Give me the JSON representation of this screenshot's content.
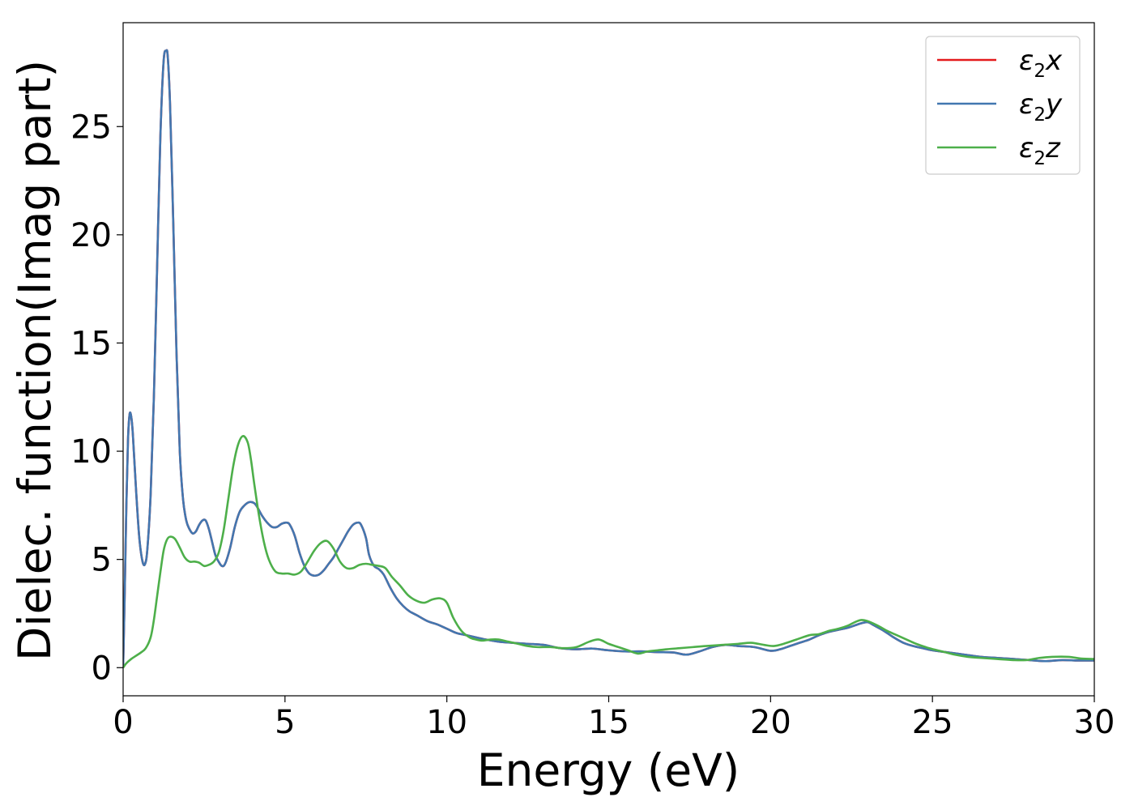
{
  "chart_data": {
    "type": "line",
    "title": "",
    "xlabel": "Energy (eV)",
    "ylabel": "Dielec. function(Imag part)",
    "xlim": [
      0,
      30
    ],
    "ylim": [
      -1.3,
      29.8
    ],
    "xticks": [
      0,
      5,
      10,
      15,
      20,
      25,
      30
    ],
    "yticks": [
      0,
      5,
      10,
      15,
      20,
      25
    ],
    "grid": false,
    "legend_position": "top-right",
    "series": [
      {
        "name": "ε₂x",
        "legend_main": "ε",
        "legend_sub": "2",
        "legend_suffix": "x",
        "color": "#e41a1c",
        "x": [
          0,
          0.05,
          0.1,
          0.15,
          0.2,
          0.25,
          0.3,
          0.4,
          0.5,
          0.6,
          0.68,
          0.75,
          0.85,
          0.95,
          1.05,
          1.15,
          1.25,
          1.33,
          1.38,
          1.45,
          1.55,
          1.65,
          1.75,
          1.85,
          1.95,
          2.05,
          2.15,
          2.25,
          2.35,
          2.45,
          2.55,
          2.65,
          2.75,
          2.85,
          2.95,
          3.05,
          3.15,
          3.3,
          3.45,
          3.6,
          3.75,
          3.9,
          4.05,
          4.15,
          4.3,
          4.45,
          4.6,
          4.75,
          4.9,
          5.05,
          5.15,
          5.3,
          5.45,
          5.6,
          5.75,
          5.9,
          6.05,
          6.2,
          6.35,
          6.5,
          6.65,
          6.8,
          6.95,
          7.1,
          7.25,
          7.35,
          7.5,
          7.6,
          7.75,
          7.9,
          8.05,
          8.25,
          8.45,
          8.65,
          8.85,
          9.1,
          9.4,
          9.7,
          10.0,
          10.3,
          10.6,
          10.9,
          11.2,
          11.6,
          12.0,
          12.5,
          13.0,
          13.5,
          14.0,
          14.5,
          15.0,
          15.5,
          16.0,
          16.5,
          17.0,
          17.4,
          17.8,
          18.2,
          18.6,
          19.0,
          19.5,
          20.0,
          20.3,
          20.6,
          20.9,
          21.2,
          21.5,
          21.8,
          22.1,
          22.4,
          22.6,
          22.8,
          23.0,
          23.2,
          23.5,
          23.8,
          24.1,
          24.4,
          24.7,
          25.0,
          25.5,
          26.0,
          26.5,
          27.0,
          27.5,
          28.0,
          28.5,
          29.0,
          29.5,
          30.0
        ],
        "y": [
          0.0,
          3.5,
          7.5,
          10.5,
          11.7,
          11.6,
          10.8,
          8.2,
          6.0,
          4.9,
          4.8,
          5.5,
          8.0,
          12.5,
          18.5,
          24.5,
          28.0,
          28.5,
          28.2,
          26.0,
          20.5,
          14.5,
          10.0,
          7.8,
          6.8,
          6.4,
          6.2,
          6.3,
          6.6,
          6.8,
          6.8,
          6.4,
          5.8,
          5.2,
          4.9,
          4.7,
          4.8,
          5.5,
          6.5,
          7.2,
          7.5,
          7.65,
          7.6,
          7.4,
          7.0,
          6.7,
          6.5,
          6.5,
          6.65,
          6.7,
          6.6,
          6.1,
          5.3,
          4.7,
          4.35,
          4.25,
          4.3,
          4.5,
          4.8,
          5.1,
          5.5,
          5.9,
          6.3,
          6.6,
          6.7,
          6.6,
          6.0,
          5.2,
          4.7,
          4.55,
          4.3,
          3.7,
          3.2,
          2.85,
          2.6,
          2.4,
          2.15,
          2.0,
          1.8,
          1.6,
          1.5,
          1.4,
          1.3,
          1.2,
          1.15,
          1.1,
          1.05,
          0.9,
          0.85,
          0.88,
          0.8,
          0.75,
          0.75,
          0.72,
          0.7,
          0.6,
          0.75,
          0.95,
          1.05,
          1.0,
          0.95,
          0.78,
          0.85,
          1.0,
          1.15,
          1.3,
          1.5,
          1.65,
          1.75,
          1.85,
          1.95,
          2.05,
          2.1,
          1.95,
          1.7,
          1.4,
          1.15,
          1.0,
          0.9,
          0.8,
          0.7,
          0.6,
          0.5,
          0.45,
          0.4,
          0.35,
          0.3,
          0.35,
          0.33,
          0.33
        ]
      },
      {
        "name": "ε₂y",
        "legend_main": "ε",
        "legend_sub": "2",
        "legend_suffix": "y",
        "color": "#4277b0",
        "x": [
          0,
          0.05,
          0.1,
          0.15,
          0.2,
          0.25,
          0.3,
          0.4,
          0.5,
          0.6,
          0.68,
          0.75,
          0.85,
          0.95,
          1.05,
          1.15,
          1.25,
          1.33,
          1.38,
          1.45,
          1.55,
          1.65,
          1.75,
          1.85,
          1.95,
          2.05,
          2.15,
          2.25,
          2.35,
          2.45,
          2.55,
          2.65,
          2.75,
          2.85,
          2.95,
          3.05,
          3.15,
          3.3,
          3.45,
          3.6,
          3.75,
          3.9,
          4.05,
          4.15,
          4.3,
          4.45,
          4.6,
          4.75,
          4.9,
          5.05,
          5.15,
          5.3,
          5.45,
          5.6,
          5.75,
          5.9,
          6.05,
          6.2,
          6.35,
          6.5,
          6.65,
          6.8,
          6.95,
          7.1,
          7.25,
          7.35,
          7.5,
          7.6,
          7.75,
          7.9,
          8.05,
          8.25,
          8.45,
          8.65,
          8.85,
          9.1,
          9.4,
          9.7,
          10.0,
          10.3,
          10.6,
          10.9,
          11.2,
          11.6,
          12.0,
          12.5,
          13.0,
          13.5,
          14.0,
          14.5,
          15.0,
          15.5,
          16.0,
          16.5,
          17.0,
          17.4,
          17.8,
          18.2,
          18.6,
          19.0,
          19.5,
          20.0,
          20.3,
          20.6,
          20.9,
          21.2,
          21.5,
          21.8,
          22.1,
          22.4,
          22.6,
          22.8,
          23.0,
          23.2,
          23.5,
          23.8,
          24.1,
          24.4,
          24.7,
          25.0,
          25.5,
          26.0,
          26.5,
          27.0,
          27.5,
          28.0,
          28.5,
          29.0,
          29.5,
          30.0
        ],
        "y": [
          0.0,
          3.5,
          7.5,
          10.5,
          11.7,
          11.6,
          10.8,
          8.2,
          6.0,
          4.9,
          4.8,
          5.5,
          8.0,
          12.5,
          18.5,
          24.5,
          28.0,
          28.5,
          28.2,
          26.0,
          20.5,
          14.5,
          10.0,
          7.8,
          6.8,
          6.4,
          6.2,
          6.3,
          6.6,
          6.8,
          6.8,
          6.4,
          5.8,
          5.2,
          4.9,
          4.7,
          4.8,
          5.5,
          6.5,
          7.2,
          7.5,
          7.65,
          7.6,
          7.4,
          7.0,
          6.7,
          6.5,
          6.5,
          6.65,
          6.7,
          6.6,
          6.1,
          5.3,
          4.7,
          4.35,
          4.25,
          4.3,
          4.5,
          4.8,
          5.1,
          5.5,
          5.9,
          6.3,
          6.6,
          6.7,
          6.6,
          6.0,
          5.2,
          4.7,
          4.55,
          4.3,
          3.7,
          3.2,
          2.85,
          2.6,
          2.4,
          2.15,
          2.0,
          1.8,
          1.6,
          1.5,
          1.4,
          1.3,
          1.2,
          1.15,
          1.1,
          1.05,
          0.9,
          0.85,
          0.88,
          0.8,
          0.75,
          0.75,
          0.72,
          0.7,
          0.6,
          0.75,
          0.95,
          1.05,
          1.0,
          0.95,
          0.78,
          0.85,
          1.0,
          1.15,
          1.3,
          1.5,
          1.65,
          1.75,
          1.85,
          1.95,
          2.05,
          2.1,
          1.95,
          1.7,
          1.4,
          1.15,
          1.0,
          0.9,
          0.8,
          0.7,
          0.6,
          0.5,
          0.45,
          0.4,
          0.35,
          0.3,
          0.35,
          0.33,
          0.33
        ]
      },
      {
        "name": "ε₂z",
        "legend_main": "ε",
        "legend_sub": "2",
        "legend_suffix": "z",
        "color": "#4daf4a",
        "x": [
          0,
          0.1,
          0.25,
          0.4,
          0.55,
          0.7,
          0.85,
          0.95,
          1.05,
          1.15,
          1.25,
          1.35,
          1.45,
          1.6,
          1.75,
          1.9,
          2.05,
          2.2,
          2.35,
          2.5,
          2.65,
          2.8,
          2.95,
          3.1,
          3.25,
          3.4,
          3.55,
          3.7,
          3.85,
          3.95,
          4.05,
          4.2,
          4.35,
          4.5,
          4.7,
          4.9,
          5.1,
          5.3,
          5.5,
          5.7,
          5.9,
          6.1,
          6.3,
          6.5,
          6.7,
          6.9,
          7.1,
          7.3,
          7.5,
          7.7,
          7.9,
          8.1,
          8.3,
          8.55,
          8.8,
          9.05,
          9.3,
          9.55,
          9.8,
          10.0,
          10.2,
          10.45,
          10.7,
          10.9,
          11.1,
          11.35,
          11.6,
          11.9,
          12.2,
          12.5,
          12.8,
          13.2,
          13.6,
          14.0,
          14.4,
          14.7,
          15.0,
          15.3,
          15.6,
          15.9,
          16.2,
          16.5,
          16.8,
          17.2,
          17.6,
          18.0,
          18.5,
          19.0,
          19.4,
          19.8,
          20.1,
          20.4,
          20.8,
          21.2,
          21.5,
          21.8,
          22.1,
          22.4,
          22.6,
          22.8,
          23.0,
          23.3,
          23.6,
          23.9,
          24.2,
          24.5,
          24.9,
          25.3,
          25.7,
          26.1,
          26.5,
          27.0,
          27.5,
          27.9,
          28.3,
          28.7,
          29.2,
          29.6,
          30.0
        ],
        "y": [
          0.0,
          0.2,
          0.4,
          0.55,
          0.7,
          0.9,
          1.4,
          2.2,
          3.3,
          4.4,
          5.4,
          5.9,
          6.05,
          5.95,
          5.55,
          5.1,
          4.9,
          4.9,
          4.85,
          4.7,
          4.75,
          4.9,
          5.3,
          6.3,
          7.8,
          9.3,
          10.3,
          10.7,
          10.4,
          9.6,
          8.5,
          7.0,
          5.8,
          5.0,
          4.45,
          4.35,
          4.35,
          4.3,
          4.45,
          4.9,
          5.4,
          5.75,
          5.85,
          5.5,
          4.9,
          4.6,
          4.6,
          4.75,
          4.8,
          4.75,
          4.7,
          4.6,
          4.2,
          3.8,
          3.35,
          3.1,
          3.0,
          3.15,
          3.2,
          3.0,
          2.3,
          1.7,
          1.4,
          1.3,
          1.25,
          1.3,
          1.3,
          1.2,
          1.1,
          1.0,
          0.95,
          0.95,
          0.9,
          0.95,
          1.2,
          1.3,
          1.1,
          0.95,
          0.8,
          0.65,
          0.75,
          0.8,
          0.85,
          0.9,
          0.95,
          1.0,
          1.05,
          1.1,
          1.15,
          1.05,
          1.0,
          1.1,
          1.3,
          1.5,
          1.55,
          1.7,
          1.8,
          1.95,
          2.1,
          2.2,
          2.15,
          1.95,
          1.7,
          1.5,
          1.3,
          1.1,
          0.9,
          0.75,
          0.6,
          0.5,
          0.45,
          0.4,
          0.35,
          0.35,
          0.45,
          0.5,
          0.5,
          0.42,
          0.4
        ]
      }
    ]
  }
}
